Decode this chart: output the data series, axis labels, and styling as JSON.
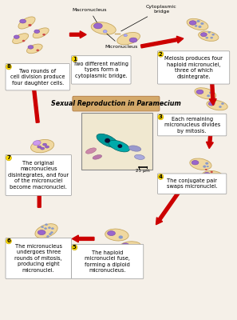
{
  "title": "Sexual Reproduction in Paramecium",
  "title_bg": "#d4a96a",
  "bg_color": "#f5f0e8",
  "step_labels": [
    "Two different mating\ntypes form a\ncytoplasmic bridge.",
    "Meiosis produces four\nhaploid micronuclei,\nthree of which\ndisintegrate.",
    "Each remaining\nmicronucleus divides\nby mitosis.",
    "The conjugate pair\nswaps micronuclei.",
    "The haploid\nmicronuclei fuse,\nforming a diploid\nmicronucleus.",
    "The micronucleus\nundergoes three\nrounds of mitosis,\nproducing eight\nmicronuclei.",
    "The original\nmacronucleus\ndisintegrates, and four\nof the micronuclei\nbecome macronuclei.",
    "Two rounds of\ncell division produce\nfour daughter cells."
  ],
  "step_numbers": [
    "1",
    "2",
    "3",
    "4",
    "5",
    "6",
    "7",
    "8"
  ],
  "arrow_color": "#cc0000",
  "cell_body_color": "#f0d8a0",
  "cell_edge_color": "#c8a860",
  "macro_color": "#9966cc",
  "macro_edge": "#7744aa",
  "micro_color": "#cc4444",
  "micro_small_color": "#8899cc",
  "scale_bar": "25 μm",
  "figsize": [
    2.97,
    4.0
  ],
  "dpi": 100
}
